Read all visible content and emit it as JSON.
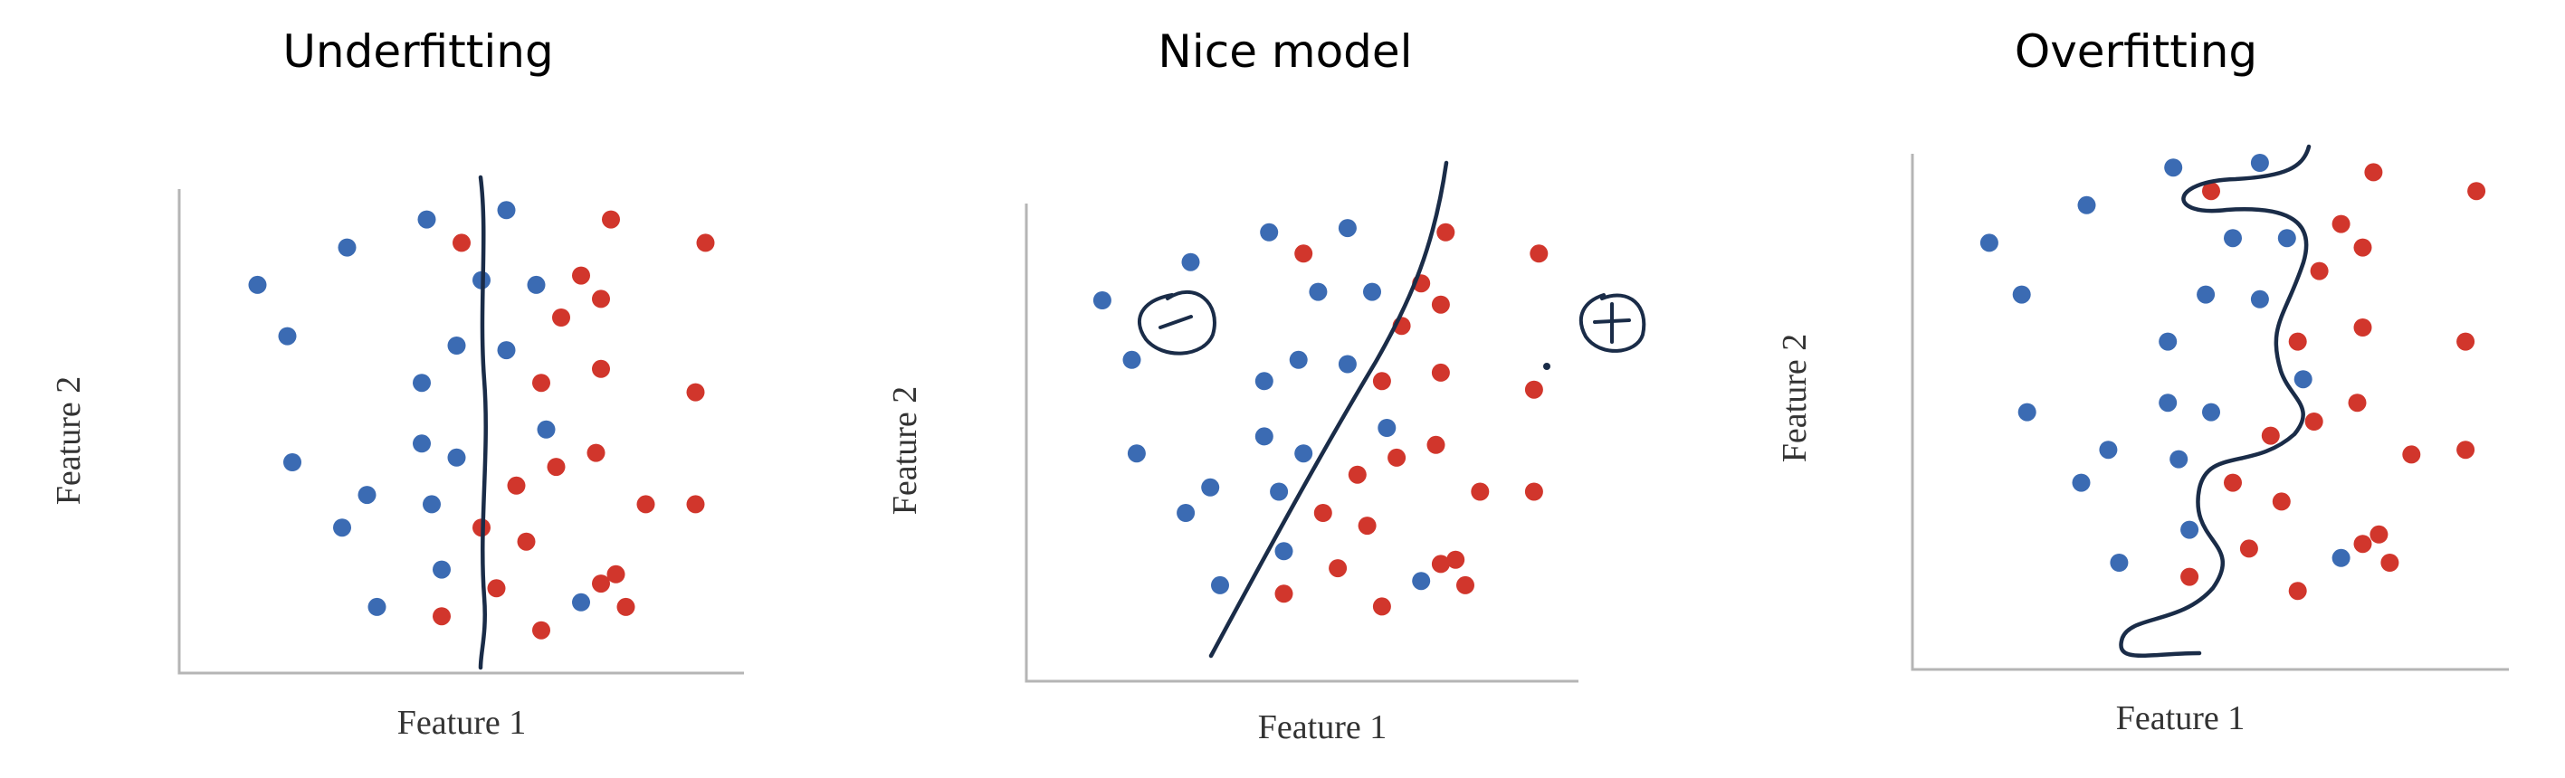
{
  "colors": {
    "blue_points": "#3b6bb3",
    "red_points": "#d1362c",
    "boundary": "#1a2c48",
    "axis": "#b5b5b5"
  },
  "panels": [
    {
      "title": "Underfitting",
      "xlabel": "Feature 1",
      "ylabel": "Feature 2",
      "boundary_kind": "vertical line"
    },
    {
      "title": "Nice model",
      "xlabel": "Feature 1",
      "ylabel": "Feature 2",
      "boundary_kind": "diagonal line",
      "annotations": [
        {
          "name": "negative-class-annotation",
          "symbol": "minus in circle"
        },
        {
          "name": "positive-class-annotation",
          "symbol": "plus in circle"
        }
      ]
    },
    {
      "title": "Overfitting",
      "xlabel": "Feature 1",
      "ylabel": "Feature 2",
      "boundary_kind": "wiggly curve"
    }
  ],
  "chart_data": [
    {
      "type": "scatter",
      "title": "Underfitting",
      "xlabel": "Feature 1",
      "ylabel": "Feature 2",
      "grid": false,
      "xlim": [
        0,
        100
      ],
      "ylim": [
        0,
        100
      ],
      "series": [
        {
          "color": "#3b6bb3",
          "points": [
            [
              41,
              96
            ],
            [
              57,
              98
            ],
            [
              7,
              82
            ],
            [
              25,
              90
            ],
            [
              52,
              83
            ],
            [
              63,
              82
            ],
            [
              13,
              71
            ],
            [
              47,
              69
            ],
            [
              57,
              68
            ],
            [
              40,
              61
            ],
            [
              65,
              51
            ],
            [
              40,
              48
            ],
            [
              47,
              45
            ],
            [
              14,
              44
            ],
            [
              29,
              37
            ],
            [
              42,
              35
            ],
            [
              24,
              30
            ],
            [
              44,
              21
            ],
            [
              72,
              14
            ],
            [
              31,
              13
            ]
          ]
        },
        {
          "color": "#d1362c",
          "points": [
            [
              48,
              91
            ],
            [
              78,
              96
            ],
            [
              97,
              91
            ],
            [
              72,
              84
            ],
            [
              76,
              79
            ],
            [
              68,
              75
            ],
            [
              76,
              64
            ],
            [
              64,
              61
            ],
            [
              95,
              59
            ],
            [
              75,
              46
            ],
            [
              67,
              43
            ],
            [
              59,
              39
            ],
            [
              85,
              35
            ],
            [
              95,
              35
            ],
            [
              52,
              30
            ],
            [
              61,
              27
            ],
            [
              79,
              20
            ],
            [
              76,
              18
            ],
            [
              55,
              17
            ],
            [
              81,
              13
            ],
            [
              44,
              11
            ],
            [
              64,
              8
            ]
          ]
        }
      ]
    },
    {
      "type": "scatter",
      "title": "Nice model",
      "xlabel": "Feature 1",
      "ylabel": "Feature 2",
      "grid": false,
      "xlim": [
        0,
        100
      ],
      "ylim": [
        0,
        100
      ],
      "series": [
        {
          "color": "#3b6bb3",
          "points": [
            [
              7,
              80
            ],
            [
              25,
              89
            ],
            [
              41,
              96
            ],
            [
              57,
              97
            ],
            [
              13,
              66
            ],
            [
              51,
              82
            ],
            [
              62,
              82
            ],
            [
              47,
              66
            ],
            [
              57,
              65
            ],
            [
              40,
              61
            ],
            [
              40,
              48
            ],
            [
              65,
              50
            ],
            [
              48,
              44
            ],
            [
              14,
              44
            ],
            [
              29,
              36
            ],
            [
              43,
              35
            ],
            [
              24,
              30
            ],
            [
              44,
              21
            ],
            [
              72,
              14
            ],
            [
              31,
              13
            ]
          ]
        },
        {
          "color": "#d1362c",
          "points": [
            [
              48,
              91
            ],
            [
              77,
              96
            ],
            [
              96,
              91
            ],
            [
              72,
              84
            ],
            [
              76,
              79
            ],
            [
              68,
              74
            ],
            [
              76,
              63
            ],
            [
              64,
              61
            ],
            [
              95,
              59
            ],
            [
              75,
              46
            ],
            [
              67,
              43
            ],
            [
              59,
              39
            ],
            [
              84,
              35
            ],
            [
              95,
              35
            ],
            [
              52,
              30
            ],
            [
              61,
              27
            ],
            [
              79,
              19
            ],
            [
              76,
              18
            ],
            [
              55,
              17
            ],
            [
              81,
              13
            ],
            [
              44,
              11
            ],
            [
              64,
              8
            ]
          ]
        }
      ]
    },
    {
      "type": "scatter",
      "title": "Overfitting",
      "xlabel": "Feature 1",
      "ylabel": "Feature 2",
      "grid": false,
      "xlim": [
        0,
        100
      ],
      "ylim": [
        0,
        100
      ],
      "series": [
        {
          "color": "#3b6bb3",
          "points": [
            [
              41,
              99
            ],
            [
              57,
              100
            ],
            [
              7,
              83
            ],
            [
              25,
              91
            ],
            [
              52,
              84
            ],
            [
              62,
              84
            ],
            [
              13,
              72
            ],
            [
              47,
              72
            ],
            [
              57,
              71
            ],
            [
              40,
              62
            ],
            [
              65,
              54
            ],
            [
              40,
              49
            ],
            [
              48,
              47
            ],
            [
              14,
              47
            ],
            [
              29,
              39
            ],
            [
              42,
              37
            ],
            [
              24,
              32
            ],
            [
              44,
              22
            ],
            [
              72,
              16
            ],
            [
              31,
              15
            ]
          ]
        },
        {
          "color": "#d1362c",
          "points": [
            [
              48,
              94
            ],
            [
              78,
              98
            ],
            [
              97,
              94
            ],
            [
              72,
              87
            ],
            [
              76,
              82
            ],
            [
              68,
              77
            ],
            [
              76,
              65
            ],
            [
              64,
              62
            ],
            [
              95,
              62
            ],
            [
              75,
              49
            ],
            [
              67,
              45
            ],
            [
              59,
              42
            ],
            [
              85,
              38
            ],
            [
              95,
              39
            ],
            [
              52,
              32
            ],
            [
              61,
              28
            ],
            [
              79,
              21
            ],
            [
              76,
              19
            ],
            [
              55,
              18
            ],
            [
              81,
              15
            ],
            [
              44,
              12
            ],
            [
              64,
              9
            ]
          ]
        }
      ]
    }
  ]
}
